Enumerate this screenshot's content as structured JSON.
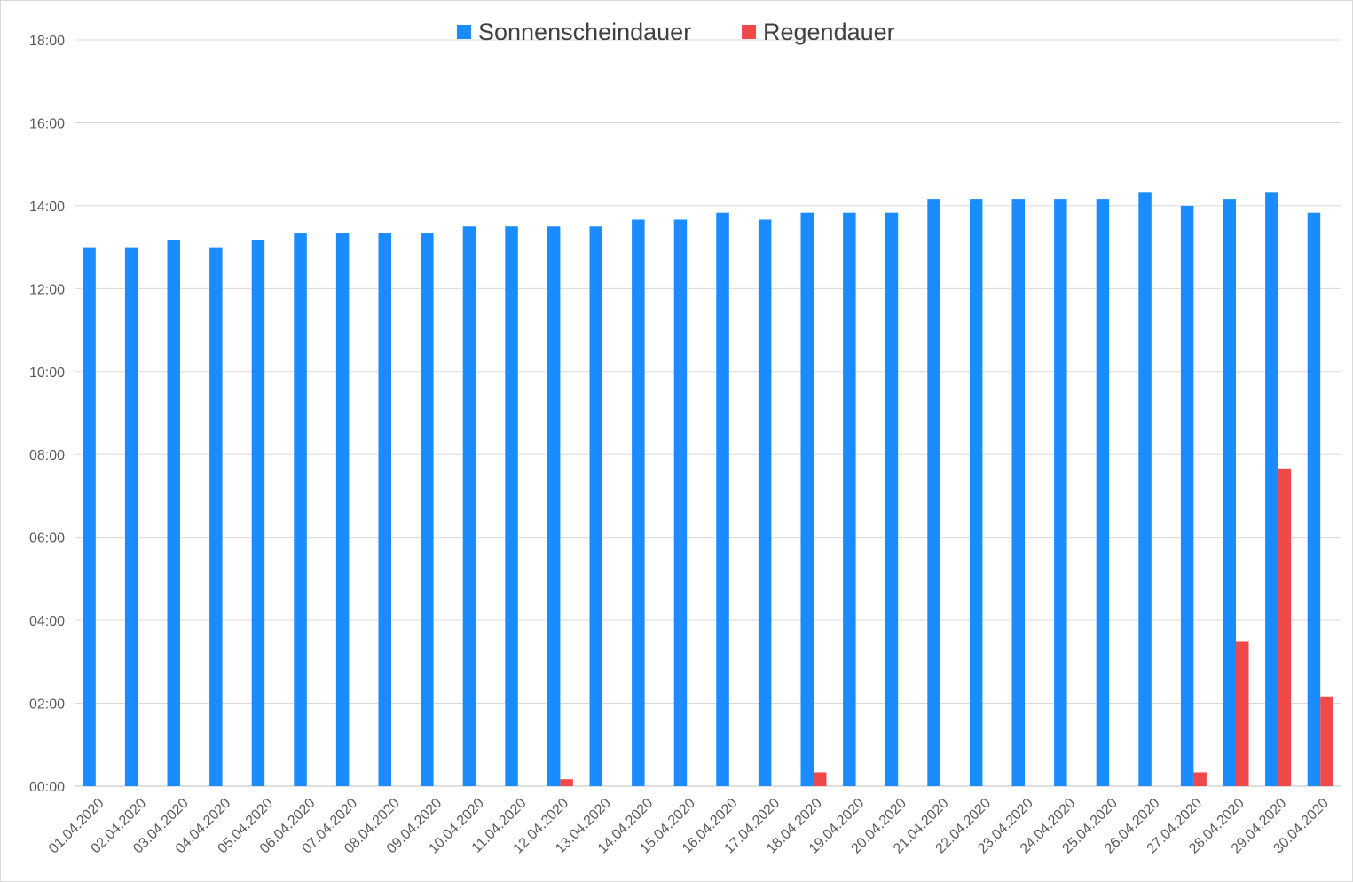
{
  "chart_data": {
    "type": "bar",
    "title": "",
    "xlabel": "",
    "ylabel": "",
    "ylim": [
      0,
      1080
    ],
    "yticks": [
      {
        "value": 0,
        "label": "00:00"
      },
      {
        "value": 120,
        "label": "02:00"
      },
      {
        "value": 240,
        "label": "04:00"
      },
      {
        "value": 360,
        "label": "06:00"
      },
      {
        "value": 480,
        "label": "08:00"
      },
      {
        "value": 600,
        "label": "10:00"
      },
      {
        "value": 720,
        "label": "12:00"
      },
      {
        "value": 840,
        "label": "14:00"
      },
      {
        "value": 960,
        "label": "16:00"
      },
      {
        "value": 1080,
        "label": "18:00"
      }
    ],
    "grid": true,
    "legend_position": "top-center",
    "categories": [
      "01.04.2020",
      "02.04.2020",
      "03.04.2020",
      "04.04.2020",
      "05.04.2020",
      "06.04.2020",
      "07.04.2020",
      "08.04.2020",
      "09.04.2020",
      "10.04.2020",
      "11.04.2020",
      "12.04.2020",
      "13.04.2020",
      "14.04.2020",
      "15.04.2020",
      "16.04.2020",
      "17.04.2020",
      "18.04.2020",
      "19.04.2020",
      "20.04.2020",
      "21.04.2020",
      "22.04.2020",
      "23.04.2020",
      "24.04.2020",
      "25.04.2020",
      "26.04.2020",
      "27.04.2020",
      "28.04.2020",
      "29.04.2020",
      "30.04.2020"
    ],
    "series": [
      {
        "name": "Sonnenscheindauer",
        "color": "#1a8cff",
        "values": [
          780,
          780,
          790,
          780,
          790,
          800,
          800,
          800,
          800,
          810,
          810,
          810,
          810,
          820,
          820,
          830,
          820,
          830,
          830,
          830,
          850,
          850,
          850,
          850,
          850,
          860,
          840,
          850,
          860,
          830
        ]
      },
      {
        "name": "Regendauer",
        "color": "#f04949",
        "values": [
          0,
          0,
          0,
          0,
          0,
          0,
          0,
          0,
          0,
          0,
          0,
          10,
          0,
          0,
          0,
          0,
          0,
          20,
          0,
          0,
          0,
          0,
          0,
          0,
          0,
          0,
          20,
          210,
          460,
          130
        ]
      }
    ]
  }
}
